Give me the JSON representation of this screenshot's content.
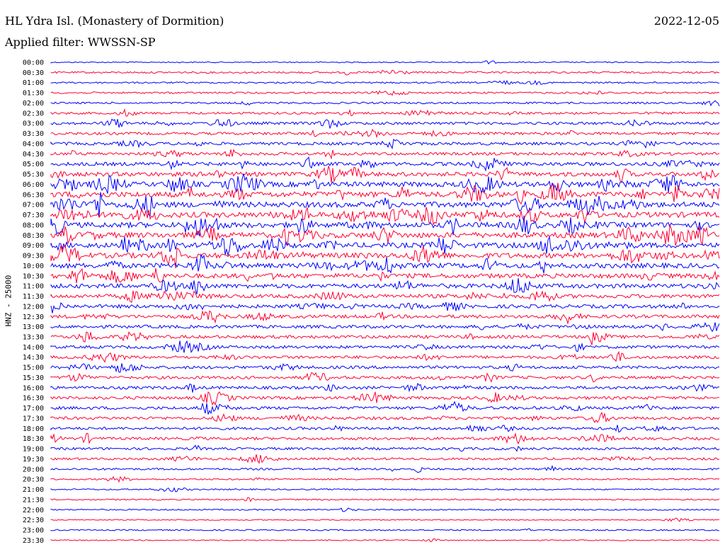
{
  "header": {
    "station": "HL Ydra Isl. (Monastery of Dormition)",
    "filter": "Applied filter: WWSSN-SP",
    "date": "2022-12-05"
  },
  "chart_data": {
    "type": "line",
    "title": "HL Ydra Isl. (Monastery of Dormition)",
    "subtitle": "Applied filter: WWSSN-SP",
    "ylabel": "HNZ - 25000",
    "date": "2022-12-05",
    "trace_colors": [
      "#0000ff",
      "#ff0033"
    ],
    "row_labels": [
      "00:00",
      "00:30",
      "01:00",
      "01:30",
      "02:00",
      "02:30",
      "03:00",
      "03:30",
      "04:00",
      "04:30",
      "05:00",
      "05:30",
      "06:00",
      "06:30",
      "07:00",
      "07:30",
      "08:00",
      "08:30",
      "09:00",
      "09:30",
      "10:00",
      "10:30",
      "11:00",
      "11:30",
      "12:00",
      "12:30",
      "13:00",
      "13:30",
      "14:00",
      "14:30",
      "15:00",
      "15:30",
      "16:00",
      "16:30",
      "17:00",
      "17:30",
      "18:00",
      "18:30",
      "19:00",
      "19:30",
      "20:00",
      "20:30",
      "21:00",
      "21:30",
      "22:00",
      "22:30",
      "23:00",
      "23:30"
    ],
    "activity": [
      0.1,
      0.4,
      0.3,
      0.4,
      0.4,
      0.6,
      0.8,
      0.8,
      0.9,
      0.9,
      1.2,
      1.5,
      1.8,
      2.0,
      2.0,
      2.0,
      2.0,
      2.0,
      1.9,
      1.9,
      1.8,
      1.6,
      1.5,
      1.3,
      1.2,
      1.1,
      1.0,
      1.0,
      0.9,
      0.9,
      0.9,
      0.9,
      0.9,
      0.9,
      0.9,
      0.9,
      0.8,
      0.8,
      0.7,
      0.6,
      0.5,
      0.3,
      0.2,
      0.2,
      0.2,
      0.1,
      0.2,
      0.1
    ]
  }
}
